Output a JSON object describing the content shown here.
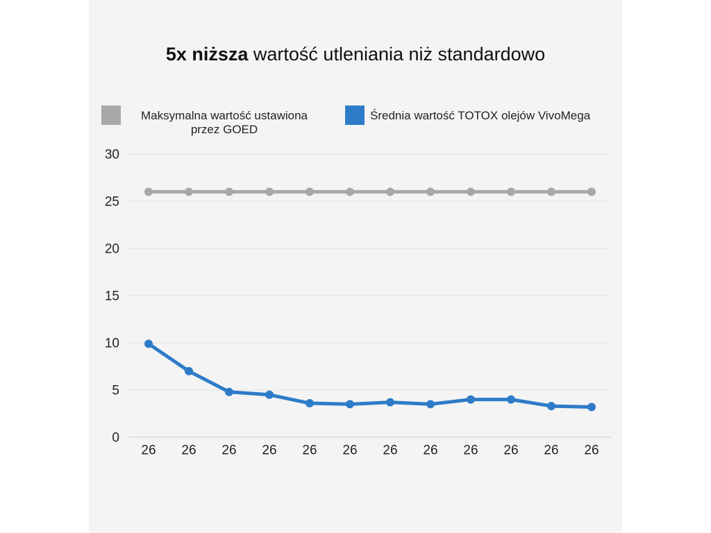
{
  "chart_data": {
    "type": "line",
    "title": {
      "bold": "5x niższa",
      "regular": "wartość utleniania niż standardowo"
    },
    "categories": [
      "26",
      "26",
      "26",
      "26",
      "26",
      "26",
      "26",
      "26",
      "26",
      "26",
      "26",
      "26"
    ],
    "yticks": [
      0,
      5,
      10,
      15,
      20,
      25,
      30
    ],
    "ylim": [
      0,
      30
    ],
    "grid": true,
    "legend_position": "top",
    "series": [
      {
        "name": "Maksymalna wartość ustawiona przez GOED",
        "color": "#a8a8a8",
        "values": [
          26,
          26,
          26,
          26,
          26,
          26,
          26,
          26,
          26,
          26,
          26,
          26
        ]
      },
      {
        "name": "Średnia wartość TOTOX olejów VivoMega",
        "color": "#2e7cc8",
        "values": [
          9.9,
          7.0,
          4.8,
          4.5,
          3.6,
          3.5,
          3.7,
          3.5,
          4.0,
          4.0,
          3.3,
          3.2
        ]
      }
    ]
  },
  "colors": {
    "page_background": "#ffffff",
    "panel_background": "#f4f4f4"
  }
}
